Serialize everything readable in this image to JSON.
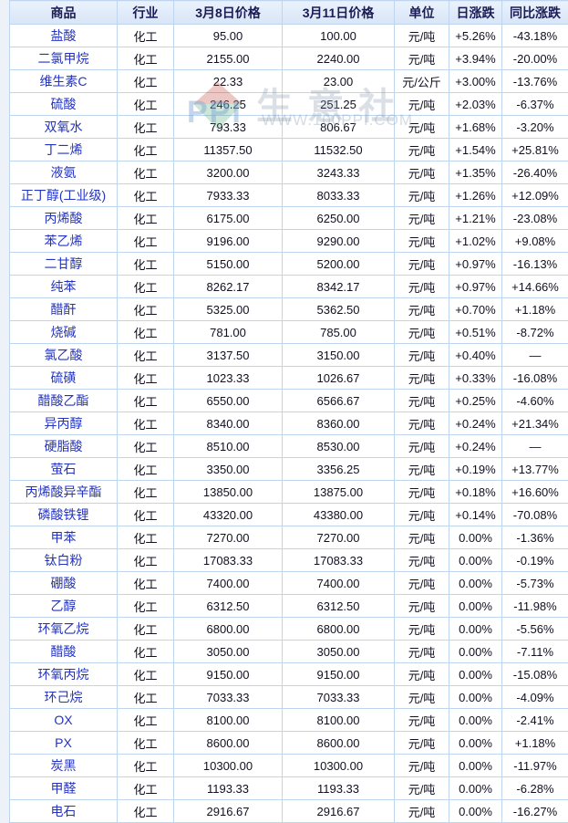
{
  "watermark": {
    "logo_text": "PPI",
    "title": "生意社",
    "url": "WWW.100PPI.COM"
  },
  "table": {
    "columns": [
      "商品",
      "行业",
      "3月8日价格",
      "3月11日价格",
      "单位",
      "日涨跌",
      "同比涨跌"
    ],
    "rows": [
      {
        "name": "盐酸",
        "industry": "化工",
        "price1": "95.00",
        "price2": "100.00",
        "unit": "元/吨",
        "daily": "+5.26%",
        "yoy": "-43.18%"
      },
      {
        "name": "二氯甲烷",
        "industry": "化工",
        "price1": "2155.00",
        "price2": "2240.00",
        "unit": "元/吨",
        "daily": "+3.94%",
        "yoy": "-20.00%"
      },
      {
        "name": "维生素C",
        "industry": "化工",
        "price1": "22.33",
        "price2": "23.00",
        "unit": "元/公斤",
        "daily": "+3.00%",
        "yoy": "-13.76%"
      },
      {
        "name": "硫酸",
        "industry": "化工",
        "price1": "246.25",
        "price2": "251.25",
        "unit": "元/吨",
        "daily": "+2.03%",
        "yoy": "-6.37%"
      },
      {
        "name": "双氧水",
        "industry": "化工",
        "price1": "793.33",
        "price2": "806.67",
        "unit": "元/吨",
        "daily": "+1.68%",
        "yoy": "-3.20%"
      },
      {
        "name": "丁二烯",
        "industry": "化工",
        "price1": "11357.50",
        "price2": "11532.50",
        "unit": "元/吨",
        "daily": "+1.54%",
        "yoy": "+25.81%"
      },
      {
        "name": "液氨",
        "industry": "化工",
        "price1": "3200.00",
        "price2": "3243.33",
        "unit": "元/吨",
        "daily": "+1.35%",
        "yoy": "-26.40%"
      },
      {
        "name": "正丁醇(工业级)",
        "industry": "化工",
        "price1": "7933.33",
        "price2": "8033.33",
        "unit": "元/吨",
        "daily": "+1.26%",
        "yoy": "+12.09%"
      },
      {
        "name": "丙烯酸",
        "industry": "化工",
        "price1": "6175.00",
        "price2": "6250.00",
        "unit": "元/吨",
        "daily": "+1.21%",
        "yoy": "-23.08%"
      },
      {
        "name": "苯乙烯",
        "industry": "化工",
        "price1": "9196.00",
        "price2": "9290.00",
        "unit": "元/吨",
        "daily": "+1.02%",
        "yoy": "+9.08%"
      },
      {
        "name": "二甘醇",
        "industry": "化工",
        "price1": "5150.00",
        "price2": "5200.00",
        "unit": "元/吨",
        "daily": "+0.97%",
        "yoy": "-16.13%"
      },
      {
        "name": "纯苯",
        "industry": "化工",
        "price1": "8262.17",
        "price2": "8342.17",
        "unit": "元/吨",
        "daily": "+0.97%",
        "yoy": "+14.66%"
      },
      {
        "name": "醋酐",
        "industry": "化工",
        "price1": "5325.00",
        "price2": "5362.50",
        "unit": "元/吨",
        "daily": "+0.70%",
        "yoy": "+1.18%"
      },
      {
        "name": "烧碱",
        "industry": "化工",
        "price1": "781.00",
        "price2": "785.00",
        "unit": "元/吨",
        "daily": "+0.51%",
        "yoy": "-8.72%"
      },
      {
        "name": "氯乙酸",
        "industry": "化工",
        "price1": "3137.50",
        "price2": "3150.00",
        "unit": "元/吨",
        "daily": "+0.40%",
        "yoy": "—"
      },
      {
        "name": "硫磺",
        "industry": "化工",
        "price1": "1023.33",
        "price2": "1026.67",
        "unit": "元/吨",
        "daily": "+0.33%",
        "yoy": "-16.08%"
      },
      {
        "name": "醋酸乙酯",
        "industry": "化工",
        "price1": "6550.00",
        "price2": "6566.67",
        "unit": "元/吨",
        "daily": "+0.25%",
        "yoy": "-4.60%"
      },
      {
        "name": "异丙醇",
        "industry": "化工",
        "price1": "8340.00",
        "price2": "8360.00",
        "unit": "元/吨",
        "daily": "+0.24%",
        "yoy": "+21.34%"
      },
      {
        "name": "硬脂酸",
        "industry": "化工",
        "price1": "8510.00",
        "price2": "8530.00",
        "unit": "元/吨",
        "daily": "+0.24%",
        "yoy": "—"
      },
      {
        "name": "萤石",
        "industry": "化工",
        "price1": "3350.00",
        "price2": "3356.25",
        "unit": "元/吨",
        "daily": "+0.19%",
        "yoy": "+13.77%"
      },
      {
        "name": "丙烯酸异辛酯",
        "industry": "化工",
        "price1": "13850.00",
        "price2": "13875.00",
        "unit": "元/吨",
        "daily": "+0.18%",
        "yoy": "+16.60%"
      },
      {
        "name": "磷酸铁锂",
        "industry": "化工",
        "price1": "43320.00",
        "price2": "43380.00",
        "unit": "元/吨",
        "daily": "+0.14%",
        "yoy": "-70.08%"
      },
      {
        "name": "甲苯",
        "industry": "化工",
        "price1": "7270.00",
        "price2": "7270.00",
        "unit": "元/吨",
        "daily": "0.00%",
        "yoy": "-1.36%"
      },
      {
        "name": "钛白粉",
        "industry": "化工",
        "price1": "17083.33",
        "price2": "17083.33",
        "unit": "元/吨",
        "daily": "0.00%",
        "yoy": "-0.19%"
      },
      {
        "name": "硼酸",
        "industry": "化工",
        "price1": "7400.00",
        "price2": "7400.00",
        "unit": "元/吨",
        "daily": "0.00%",
        "yoy": "-5.73%"
      },
      {
        "name": "乙醇",
        "industry": "化工",
        "price1": "6312.50",
        "price2": "6312.50",
        "unit": "元/吨",
        "daily": "0.00%",
        "yoy": "-11.98%"
      },
      {
        "name": "环氧乙烷",
        "industry": "化工",
        "price1": "6800.00",
        "price2": "6800.00",
        "unit": "元/吨",
        "daily": "0.00%",
        "yoy": "-5.56%"
      },
      {
        "name": "醋酸",
        "industry": "化工",
        "price1": "3050.00",
        "price2": "3050.00",
        "unit": "元/吨",
        "daily": "0.00%",
        "yoy": "-7.11%"
      },
      {
        "name": "环氧丙烷",
        "industry": "化工",
        "price1": "9150.00",
        "price2": "9150.00",
        "unit": "元/吨",
        "daily": "0.00%",
        "yoy": "-15.08%"
      },
      {
        "name": "环己烷",
        "industry": "化工",
        "price1": "7033.33",
        "price2": "7033.33",
        "unit": "元/吨",
        "daily": "0.00%",
        "yoy": "-4.09%"
      },
      {
        "name": "OX",
        "industry": "化工",
        "price1": "8100.00",
        "price2": "8100.00",
        "unit": "元/吨",
        "daily": "0.00%",
        "yoy": "-2.41%"
      },
      {
        "name": "PX",
        "industry": "化工",
        "price1": "8600.00",
        "price2": "8600.00",
        "unit": "元/吨",
        "daily": "0.00%",
        "yoy": "+1.18%"
      },
      {
        "name": "炭黑",
        "industry": "化工",
        "price1": "10300.00",
        "price2": "10300.00",
        "unit": "元/吨",
        "daily": "0.00%",
        "yoy": "-11.97%"
      },
      {
        "name": "甲醛",
        "industry": "化工",
        "price1": "1193.33",
        "price2": "1193.33",
        "unit": "元/吨",
        "daily": "0.00%",
        "yoy": "-6.28%"
      },
      {
        "name": "电石",
        "industry": "化工",
        "price1": "2916.67",
        "price2": "2916.67",
        "unit": "元/吨",
        "daily": "0.00%",
        "yoy": "-16.27%"
      }
    ]
  },
  "colors": {
    "up": "#ff0000",
    "down": "#008800",
    "neutral": "#101021"
  }
}
